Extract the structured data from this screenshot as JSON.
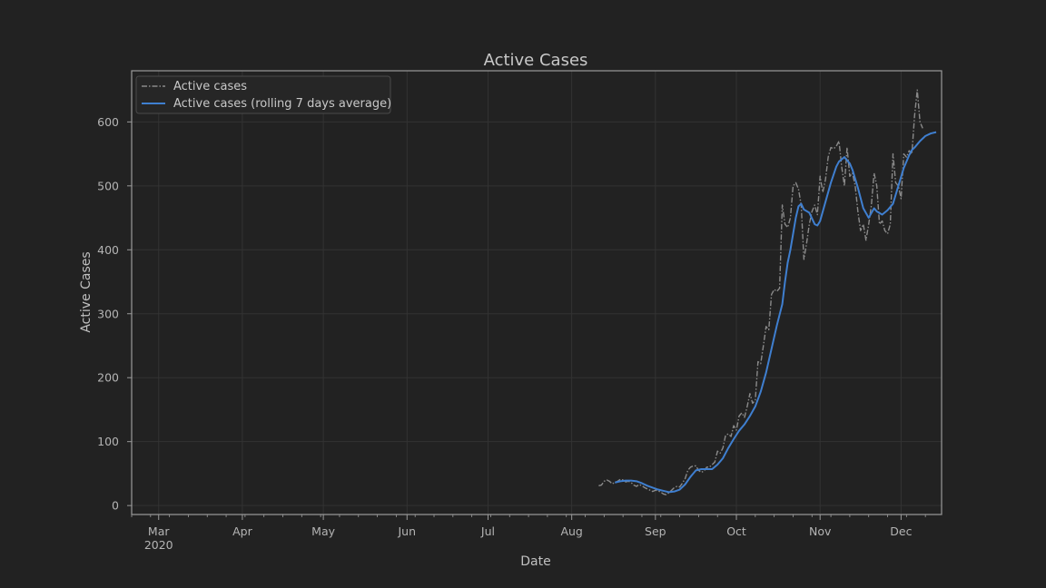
{
  "chart_data": {
    "type": "line",
    "title": "Active Cases",
    "xlabel": "Date",
    "ylabel": "Active Cases",
    "x_range": [
      "2020-02-20",
      "2020-12-16"
    ],
    "ylim": [
      -14,
      680
    ],
    "yticks": [
      0,
      100,
      200,
      300,
      400,
      500,
      600
    ],
    "xticks": [
      {
        "date": "2020-03-01",
        "label": "Mar",
        "sublabel": "2020"
      },
      {
        "date": "2020-04-01",
        "label": "Apr",
        "sublabel": ""
      },
      {
        "date": "2020-05-01",
        "label": "May",
        "sublabel": ""
      },
      {
        "date": "2020-06-01",
        "label": "Jun",
        "sublabel": ""
      },
      {
        "date": "2020-07-01",
        "label": "Jul",
        "sublabel": ""
      },
      {
        "date": "2020-08-01",
        "label": "Aug",
        "sublabel": ""
      },
      {
        "date": "2020-09-01",
        "label": "Sep",
        "sublabel": ""
      },
      {
        "date": "2020-10-01",
        "label": "Oct",
        "sublabel": ""
      },
      {
        "date": "2020-11-01",
        "label": "Nov",
        "sublabel": ""
      },
      {
        "date": "2020-12-01",
        "label": "Dec",
        "sublabel": ""
      }
    ],
    "grid": true,
    "legend_position": "top-left",
    "series": [
      {
        "name": "Active cases",
        "style": "dashdot",
        "color": "#8a8a8a",
        "points": [
          [
            "2020-08-11",
            31
          ],
          [
            "2020-08-12",
            32
          ],
          [
            "2020-08-13",
            38
          ],
          [
            "2020-08-14",
            40
          ],
          [
            "2020-08-15",
            38
          ],
          [
            "2020-08-16",
            34
          ],
          [
            "2020-08-17",
            36
          ],
          [
            "2020-08-18",
            38
          ],
          [
            "2020-08-19",
            41
          ],
          [
            "2020-08-20",
            40
          ],
          [
            "2020-08-21",
            37
          ],
          [
            "2020-08-22",
            38
          ],
          [
            "2020-08-23",
            36
          ],
          [
            "2020-08-24",
            32
          ],
          [
            "2020-08-25",
            30
          ],
          [
            "2020-08-26",
            33
          ],
          [
            "2020-08-27",
            31
          ],
          [
            "2020-08-28",
            28
          ],
          [
            "2020-08-29",
            26
          ],
          [
            "2020-08-30",
            24
          ],
          [
            "2020-08-31",
            22
          ],
          [
            "2020-09-01",
            24
          ],
          [
            "2020-09-02",
            23
          ],
          [
            "2020-09-03",
            21
          ],
          [
            "2020-09-04",
            18
          ],
          [
            "2020-09-05",
            17
          ],
          [
            "2020-09-06",
            20
          ],
          [
            "2020-09-07",
            24
          ],
          [
            "2020-09-08",
            28
          ],
          [
            "2020-09-09",
            30
          ],
          [
            "2020-09-10",
            29
          ],
          [
            "2020-09-11",
            35
          ],
          [
            "2020-09-12",
            42
          ],
          [
            "2020-09-13",
            55
          ],
          [
            "2020-09-14",
            60
          ],
          [
            "2020-09-15",
            62
          ],
          [
            "2020-09-16",
            62
          ],
          [
            "2020-09-17",
            55
          ],
          [
            "2020-09-18",
            52
          ],
          [
            "2020-09-19",
            54
          ],
          [
            "2020-09-20",
            60
          ],
          [
            "2020-09-21",
            60
          ],
          [
            "2020-09-22",
            64
          ],
          [
            "2020-09-23",
            68
          ],
          [
            "2020-09-24",
            85
          ],
          [
            "2020-09-25",
            82
          ],
          [
            "2020-09-26",
            90
          ],
          [
            "2020-09-27",
            110
          ],
          [
            "2020-09-28",
            112
          ],
          [
            "2020-09-29",
            108
          ],
          [
            "2020-09-30",
            125
          ],
          [
            "2020-10-01",
            118
          ],
          [
            "2020-10-02",
            140
          ],
          [
            "2020-10-03",
            145
          ],
          [
            "2020-10-04",
            138
          ],
          [
            "2020-10-05",
            155
          ],
          [
            "2020-10-06",
            175
          ],
          [
            "2020-10-07",
            160
          ],
          [
            "2020-10-08",
            165
          ],
          [
            "2020-10-09",
            225
          ],
          [
            "2020-10-10",
            222
          ],
          [
            "2020-10-11",
            250
          ],
          [
            "2020-10-12",
            280
          ],
          [
            "2020-10-13",
            275
          ],
          [
            "2020-10-14",
            330
          ],
          [
            "2020-10-15",
            338
          ],
          [
            "2020-10-16",
            335
          ],
          [
            "2020-10-17",
            340
          ],
          [
            "2020-10-18",
            470
          ],
          [
            "2020-10-19",
            440
          ],
          [
            "2020-10-20",
            435
          ],
          [
            "2020-10-21",
            450
          ],
          [
            "2020-10-22",
            500
          ],
          [
            "2020-10-23",
            505
          ],
          [
            "2020-10-24",
            495
          ],
          [
            "2020-10-25",
            470
          ],
          [
            "2020-10-26",
            385
          ],
          [
            "2020-10-27",
            410
          ],
          [
            "2020-10-28",
            440
          ],
          [
            "2020-10-29",
            460
          ],
          [
            "2020-10-30",
            470
          ],
          [
            "2020-10-31",
            455
          ],
          [
            "2020-11-01",
            515
          ],
          [
            "2020-11-02",
            490
          ],
          [
            "2020-11-03",
            510
          ],
          [
            "2020-11-04",
            545
          ],
          [
            "2020-11-05",
            560
          ],
          [
            "2020-11-06",
            558
          ],
          [
            "2020-11-07",
            562
          ],
          [
            "2020-11-08",
            570
          ],
          [
            "2020-11-09",
            530
          ],
          [
            "2020-11-10",
            500
          ],
          [
            "2020-11-11",
            560
          ],
          [
            "2020-11-12",
            515
          ],
          [
            "2020-11-13",
            520
          ],
          [
            "2020-11-14",
            500
          ],
          [
            "2020-11-15",
            460
          ],
          [
            "2020-11-16",
            430
          ],
          [
            "2020-11-17",
            440
          ],
          [
            "2020-11-18",
            415
          ],
          [
            "2020-11-19",
            440
          ],
          [
            "2020-11-20",
            470
          ],
          [
            "2020-11-21",
            520
          ],
          [
            "2020-11-22",
            500
          ],
          [
            "2020-11-23",
            440
          ],
          [
            "2020-11-24",
            445
          ],
          [
            "2020-11-25",
            430
          ],
          [
            "2020-11-26",
            425
          ],
          [
            "2020-11-27",
            440
          ],
          [
            "2020-11-28",
            550
          ],
          [
            "2020-11-29",
            505
          ],
          [
            "2020-11-30",
            500
          ],
          [
            "2020-12-01",
            480
          ],
          [
            "2020-12-02",
            550
          ],
          [
            "2020-12-03",
            545
          ],
          [
            "2020-12-04",
            555
          ],
          [
            "2020-12-05",
            550
          ],
          [
            "2020-12-06",
            610
          ],
          [
            "2020-12-07",
            650
          ],
          [
            "2020-12-08",
            600
          ],
          [
            "2020-12-09",
            590
          ]
        ]
      },
      {
        "name": "Active cases (rolling 7 days average)",
        "style": "solid",
        "color": "#3f7fd0",
        "points": [
          [
            "2020-08-17",
            36
          ],
          [
            "2020-08-19",
            38
          ],
          [
            "2020-08-21",
            39
          ],
          [
            "2020-08-23",
            39
          ],
          [
            "2020-08-25",
            38
          ],
          [
            "2020-08-27",
            35
          ],
          [
            "2020-08-29",
            31
          ],
          [
            "2020-08-31",
            28
          ],
          [
            "2020-09-02",
            25
          ],
          [
            "2020-09-04",
            23
          ],
          [
            "2020-09-06",
            21
          ],
          [
            "2020-09-08",
            22
          ],
          [
            "2020-09-10",
            25
          ],
          [
            "2020-09-12",
            33
          ],
          [
            "2020-09-14",
            45
          ],
          [
            "2020-09-16",
            55
          ],
          [
            "2020-09-18",
            57
          ],
          [
            "2020-09-20",
            57
          ],
          [
            "2020-09-22",
            57
          ],
          [
            "2020-09-24",
            64
          ],
          [
            "2020-09-26",
            74
          ],
          [
            "2020-09-28",
            90
          ],
          [
            "2020-09-30",
            104
          ],
          [
            "2020-10-02",
            117
          ],
          [
            "2020-10-04",
            127
          ],
          [
            "2020-10-06",
            140
          ],
          [
            "2020-10-08",
            155
          ],
          [
            "2020-10-10",
            178
          ],
          [
            "2020-10-12",
            208
          ],
          [
            "2020-10-14",
            245
          ],
          [
            "2020-10-16",
            282
          ],
          [
            "2020-10-18",
            315
          ],
          [
            "2020-10-19",
            350
          ],
          [
            "2020-10-20",
            380
          ],
          [
            "2020-10-21",
            400
          ],
          [
            "2020-10-23",
            450
          ],
          [
            "2020-10-24",
            468
          ],
          [
            "2020-10-25",
            472
          ],
          [
            "2020-10-26",
            463
          ],
          [
            "2020-10-28",
            458
          ],
          [
            "2020-10-30",
            440
          ],
          [
            "2020-10-31",
            438
          ],
          [
            "2020-11-01",
            445
          ],
          [
            "2020-11-03",
            475
          ],
          [
            "2020-11-05",
            505
          ],
          [
            "2020-11-07",
            530
          ],
          [
            "2020-11-08",
            538
          ],
          [
            "2020-11-10",
            545
          ],
          [
            "2020-11-12",
            535
          ],
          [
            "2020-11-13",
            525
          ],
          [
            "2020-11-15",
            497
          ],
          [
            "2020-11-17",
            465
          ],
          [
            "2020-11-19",
            450
          ],
          [
            "2020-11-21",
            465
          ],
          [
            "2020-11-22",
            460
          ],
          [
            "2020-11-24",
            455
          ],
          [
            "2020-11-26",
            462
          ],
          [
            "2020-11-28",
            472
          ],
          [
            "2020-11-30",
            500
          ],
          [
            "2020-12-02",
            528
          ],
          [
            "2020-12-04",
            548
          ],
          [
            "2020-12-05",
            556
          ],
          [
            "2020-12-06",
            560
          ],
          [
            "2020-12-08",
            570
          ],
          [
            "2020-12-10",
            578
          ],
          [
            "2020-12-12",
            582
          ],
          [
            "2020-12-14",
            584
          ]
        ]
      }
    ]
  }
}
